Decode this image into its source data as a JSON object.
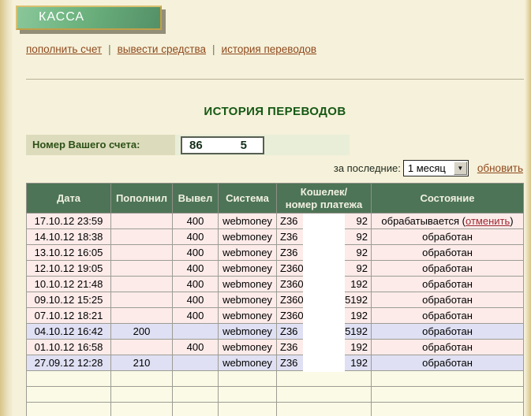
{
  "colors": {
    "page_bg": "#f6f1da",
    "banner_green_light": "#8ac79a",
    "banner_green_dark": "#549067",
    "banner_border_gold": "#bfa04a",
    "nav_link_brown": "#8e4a1e",
    "title_green": "#155915",
    "account_label_bg": "#dcdcbd",
    "account_zone_bg": "#e9eed8",
    "table_header_green": "#4d7456",
    "row_pink": "#fcebe9",
    "row_blue": "#dfe0f3",
    "row_empty": "#fbfae6",
    "cancel_link_red": "#9d2933"
  },
  "banner": {
    "label": "КАССА"
  },
  "nav": {
    "separator": "|",
    "items": [
      {
        "label": "пополнить счет"
      },
      {
        "label": "вывести средства"
      },
      {
        "label": "история переводов"
      }
    ]
  },
  "main": {
    "title": "ИСТОРИЯ ПЕРЕВОДОВ",
    "account": {
      "label": "Номер Вашего счета:",
      "value_prefix": "86",
      "value_suffix": "5"
    },
    "filter": {
      "label": "за последние:",
      "selected_option": "1 месяц",
      "dropdown_icon": "▼",
      "refresh_label": "обновить"
    }
  },
  "table": {
    "headers": {
      "date": "Дата",
      "deposit": "Пополнил",
      "withdraw": "Вывел",
      "system": "Система",
      "wallet_line1": "Кошелек/",
      "wallet_line2": "номер платежа",
      "status": "Состояние"
    },
    "rows": [
      {
        "date": "17.10.12 23:59",
        "deposit": "",
        "withdraw": "400",
        "system": "webmoney",
        "wallet_prefix": "Z36",
        "wallet_suffix": "92",
        "status": "обрабатывается",
        "cancel_label": "отменить"
      },
      {
        "date": "14.10.12 18:38",
        "deposit": "",
        "withdraw": "400",
        "system": "webmoney",
        "wallet_prefix": "Z36",
        "wallet_suffix": "92",
        "status": "обработан"
      },
      {
        "date": "13.10.12 16:05",
        "deposit": "",
        "withdraw": "400",
        "system": "webmoney",
        "wallet_prefix": "Z36",
        "wallet_suffix": "92",
        "status": "обработан"
      },
      {
        "date": "12.10.12 19:05",
        "deposit": "",
        "withdraw": "400",
        "system": "webmoney",
        "wallet_prefix": "Z360",
        "wallet_suffix": "92",
        "status": "обработан"
      },
      {
        "date": "10.10.12 21:48",
        "deposit": "",
        "withdraw": "400",
        "system": "webmoney",
        "wallet_prefix": "Z360",
        "wallet_suffix": "192",
        "status": "обработан"
      },
      {
        "date": "09.10.12 15:25",
        "deposit": "",
        "withdraw": "400",
        "system": "webmoney",
        "wallet_prefix": "Z360",
        "wallet_suffix": "5192",
        "status": "обработан"
      },
      {
        "date": "07.10.12 18:21",
        "deposit": "",
        "withdraw": "400",
        "system": "webmoney",
        "wallet_prefix": "Z360",
        "wallet_suffix": "192",
        "status": "обработан"
      },
      {
        "date": "04.10.12 16:42",
        "deposit": "200",
        "withdraw": "",
        "system": "webmoney",
        "wallet_prefix": "Z36",
        "wallet_suffix": "5192",
        "status": "обработан"
      },
      {
        "date": "01.10.12 16:58",
        "deposit": "",
        "withdraw": "400",
        "system": "webmoney",
        "wallet_prefix": "Z36",
        "wallet_suffix": "192",
        "status": "обработан"
      },
      {
        "date": "27.09.12 12:28",
        "deposit": "210",
        "withdraw": "",
        "system": "webmoney",
        "wallet_prefix": "Z36",
        "wallet_suffix": "192",
        "status": "обработан"
      }
    ],
    "empty_row_count": 3
  }
}
